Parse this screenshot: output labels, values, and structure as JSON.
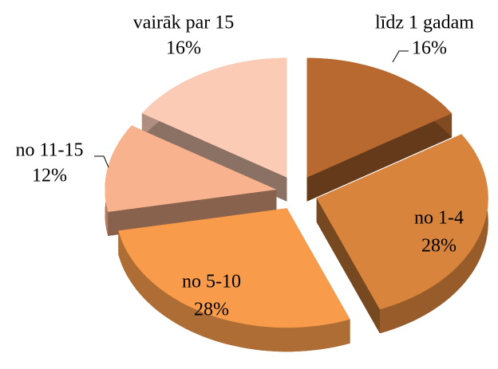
{
  "chart_data": {
    "type": "pie",
    "categories": [
      "līdz 1 gadam",
      "no 1-4",
      "no 5-10",
      "no 11-15",
      "vairāk par 15"
    ],
    "values": [
      16,
      28,
      28,
      12,
      16
    ],
    "value_labels": [
      "16%",
      "28%",
      "28%",
      "12%",
      "16%"
    ],
    "colors": [
      "#b8692f",
      "#d9843c",
      "#f89b4b",
      "#f9b28e",
      "#fccbb6"
    ]
  }
}
